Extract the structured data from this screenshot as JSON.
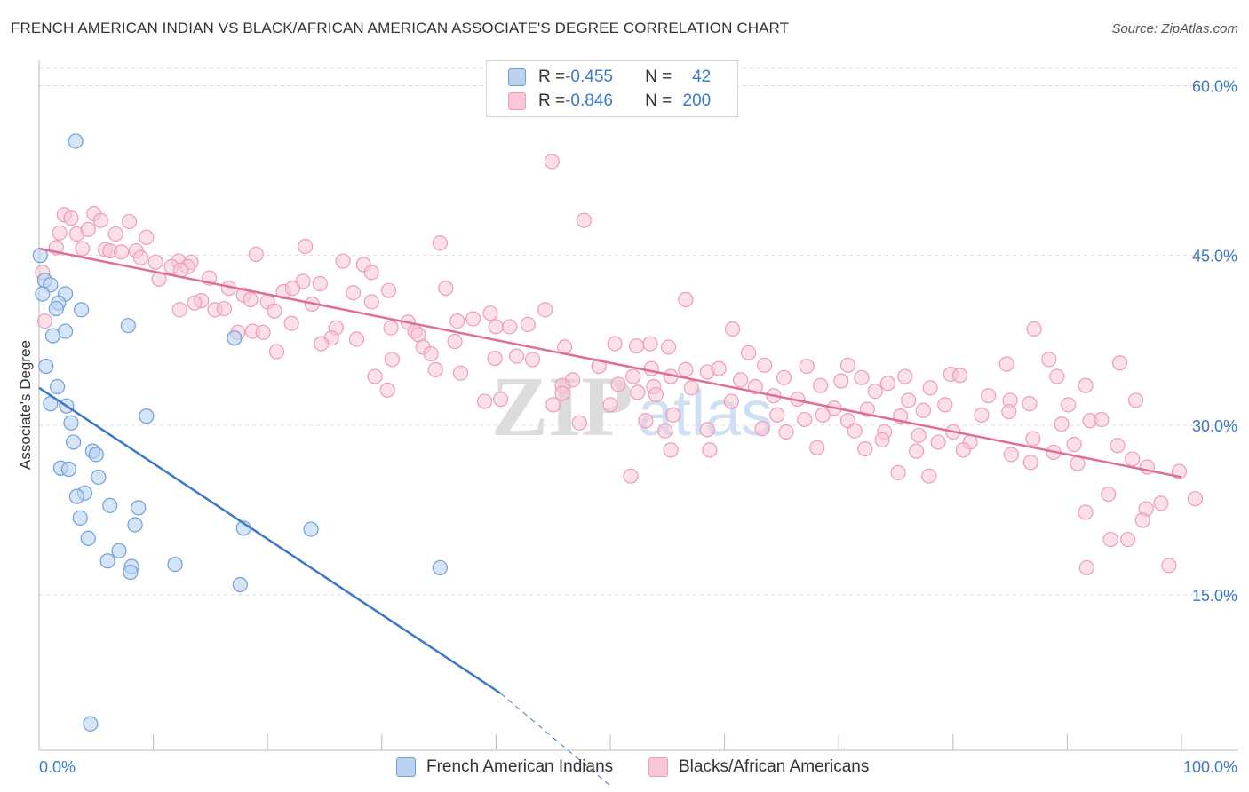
{
  "title": "FRENCH AMERICAN INDIAN VS BLACK/AFRICAN AMERICAN ASSOCIATE'S DEGREE CORRELATION CHART",
  "source": "Source: ZipAtlas.com",
  "watermark": {
    "zip": "ZIP",
    "atlas": "atlas"
  },
  "colors": {
    "blue": "#3a78c9",
    "blue_fill": "#b9d2f0",
    "blue_stroke": "#6fa0d8",
    "pink": "#e06c97",
    "pink_fill": "#f8c6d5",
    "pink_stroke": "#ee9cb8",
    "grid": "#dddddd",
    "axis_label": "#3a78c9"
  },
  "legend": {
    "rows": [
      {
        "r_label": "R = ",
        "r_value": "-0.455",
        "n_label": "N = ",
        "n_value": "42"
      },
      {
        "r_label": "R = ",
        "r_value": "-0.846",
        "n_label": "N = ",
        "n_value": "200"
      }
    ]
  },
  "chart_data": {
    "type": "scatter",
    "ylabel": "Associate's Degree",
    "xlim": [
      0,
      100
    ],
    "ylim": [
      0,
      60
    ],
    "x_tick_labels": {
      "min": "0.0%",
      "max": "100.0%"
    },
    "y_ticks": [
      {
        "value": 15,
        "label": "15.0%"
      },
      {
        "value": 30,
        "label": "30.0%"
      },
      {
        "value": 45,
        "label": "45.0%"
      },
      {
        "value": 60,
        "label": "60.0%"
      }
    ],
    "series": [
      {
        "name": "French American Indians",
        "color": "blue",
        "r": -0.455,
        "n": 42,
        "trend": {
          "x0": 0,
          "y0": 33.3,
          "x1": 40.4,
          "y1": 6.3,
          "dash_to_x": 50.0,
          "dash_to_y": 0.0
        },
        "points": [
          [
            3.2,
            55.1
          ],
          [
            0.1,
            45.0
          ],
          [
            0.5,
            42.8
          ],
          [
            1.0,
            42.4
          ],
          [
            0.3,
            41.6
          ],
          [
            2.3,
            41.6
          ],
          [
            1.7,
            40.8
          ],
          [
            1.5,
            40.3
          ],
          [
            3.7,
            40.2
          ],
          [
            7.8,
            38.8
          ],
          [
            2.3,
            38.3
          ],
          [
            1.2,
            37.9
          ],
          [
            17.1,
            37.7
          ],
          [
            0.6,
            35.2
          ],
          [
            1.6,
            33.4
          ],
          [
            1.0,
            31.9
          ],
          [
            2.4,
            31.7
          ],
          [
            9.4,
            30.8
          ],
          [
            2.8,
            30.2
          ],
          [
            3.0,
            28.5
          ],
          [
            4.7,
            27.7
          ],
          [
            5.0,
            27.4
          ],
          [
            1.9,
            26.2
          ],
          [
            2.6,
            26.1
          ],
          [
            5.2,
            25.4
          ],
          [
            4.0,
            24.0
          ],
          [
            3.3,
            23.7
          ],
          [
            6.2,
            22.9
          ],
          [
            8.7,
            22.7
          ],
          [
            3.6,
            21.8
          ],
          [
            8.4,
            21.2
          ],
          [
            17.9,
            20.9
          ],
          [
            23.8,
            20.8
          ],
          [
            4.3,
            20.0
          ],
          [
            7.0,
            18.9
          ],
          [
            6.0,
            18.0
          ],
          [
            11.9,
            17.7
          ],
          [
            8.1,
            17.5
          ],
          [
            35.1,
            17.4
          ],
          [
            8.0,
            17.0
          ],
          [
            17.6,
            15.9
          ],
          [
            4.5,
            3.6
          ]
        ]
      },
      {
        "name": "Blacks/African Americans",
        "color": "pink",
        "r": -0.846,
        "n": 200,
        "trend": {
          "x0": 0,
          "y0": 45.6,
          "x1": 100,
          "y1": 25.4
        },
        "points": [
          [
            44.9,
            53.3
          ],
          [
            47.7,
            48.1
          ],
          [
            2.2,
            48.6
          ],
          [
            4.8,
            48.7
          ],
          [
            2.8,
            48.3
          ],
          [
            5.4,
            48.1
          ],
          [
            7.9,
            48.0
          ],
          [
            1.8,
            47.0
          ],
          [
            3.3,
            46.9
          ],
          [
            4.3,
            47.3
          ],
          [
            6.7,
            46.9
          ],
          [
            9.4,
            46.6
          ],
          [
            35.1,
            46.1
          ],
          [
            23.3,
            45.8
          ],
          [
            1.5,
            45.7
          ],
          [
            3.8,
            45.6
          ],
          [
            5.8,
            45.5
          ],
          [
            6.2,
            45.4
          ],
          [
            8.5,
            45.4
          ],
          [
            7.2,
            45.3
          ],
          [
            19.0,
            45.1
          ],
          [
            8.9,
            44.8
          ],
          [
            12.2,
            44.5
          ],
          [
            10.2,
            44.4
          ],
          [
            13.3,
            44.4
          ],
          [
            26.6,
            44.5
          ],
          [
            28.4,
            44.2
          ],
          [
            11.6,
            44.0
          ],
          [
            13.0,
            44.0
          ],
          [
            12.4,
            43.7
          ],
          [
            29.1,
            43.5
          ],
          [
            10.5,
            42.9
          ],
          [
            14.9,
            43.0
          ],
          [
            23.1,
            42.7
          ],
          [
            0.3,
            43.5
          ],
          [
            16.6,
            42.1
          ],
          [
            21.4,
            41.8
          ],
          [
            22.2,
            42.1
          ],
          [
            24.6,
            42.5
          ],
          [
            35.6,
            42.1
          ],
          [
            30.6,
            41.9
          ],
          [
            27.5,
            41.7
          ],
          [
            17.9,
            41.5
          ],
          [
            18.5,
            41.1
          ],
          [
            14.2,
            41.0
          ],
          [
            13.6,
            40.8
          ],
          [
            20.0,
            40.9
          ],
          [
            23.9,
            40.7
          ],
          [
            29.1,
            40.9
          ],
          [
            56.6,
            41.1
          ],
          [
            12.3,
            40.2
          ],
          [
            15.4,
            40.2
          ],
          [
            16.2,
            40.3
          ],
          [
            20.6,
            40.1
          ],
          [
            44.3,
            40.2
          ],
          [
            39.5,
            39.9
          ],
          [
            0.5,
            39.2
          ],
          [
            22.1,
            39.0
          ],
          [
            32.3,
            39.1
          ],
          [
            36.6,
            39.2
          ],
          [
            38.0,
            39.4
          ],
          [
            40.0,
            38.7
          ],
          [
            41.2,
            38.7
          ],
          [
            42.8,
            38.9
          ],
          [
            26.0,
            38.6
          ],
          [
            30.8,
            38.6
          ],
          [
            32.9,
            38.3
          ],
          [
            60.7,
            38.5
          ],
          [
            87.1,
            38.5
          ],
          [
            17.4,
            38.2
          ],
          [
            18.7,
            38.3
          ],
          [
            19.6,
            38.2
          ],
          [
            33.2,
            38.0
          ],
          [
            25.6,
            37.7
          ],
          [
            27.8,
            37.6
          ],
          [
            24.7,
            37.2
          ],
          [
            36.4,
            37.4
          ],
          [
            50.4,
            37.2
          ],
          [
            52.3,
            37.0
          ],
          [
            53.5,
            37.2
          ],
          [
            46.0,
            36.9
          ],
          [
            55.1,
            36.9
          ],
          [
            20.8,
            36.5
          ],
          [
            33.6,
            36.9
          ],
          [
            34.3,
            36.3
          ],
          [
            41.8,
            36.1
          ],
          [
            39.9,
            35.9
          ],
          [
            62.1,
            36.4
          ],
          [
            30.9,
            35.8
          ],
          [
            43.2,
            35.8
          ],
          [
            67.2,
            35.2
          ],
          [
            70.8,
            35.3
          ],
          [
            84.7,
            35.4
          ],
          [
            88.4,
            35.8
          ],
          [
            94.6,
            35.5
          ],
          [
            49.0,
            35.2
          ],
          [
            34.7,
            34.9
          ],
          [
            53.6,
            35.0
          ],
          [
            56.6,
            34.9
          ],
          [
            58.5,
            34.7
          ],
          [
            59.5,
            35.0
          ],
          [
            63.5,
            35.3
          ],
          [
            36.9,
            34.6
          ],
          [
            29.4,
            34.3
          ],
          [
            46.7,
            34.0
          ],
          [
            52.0,
            34.3
          ],
          [
            55.3,
            34.3
          ],
          [
            61.4,
            34.0
          ],
          [
            65.2,
            34.2
          ],
          [
            72.0,
            34.2
          ],
          [
            75.8,
            34.3
          ],
          [
            79.8,
            34.5
          ],
          [
            89.1,
            34.3
          ],
          [
            45.8,
            33.5
          ],
          [
            50.7,
            33.6
          ],
          [
            53.8,
            33.4
          ],
          [
            57.1,
            33.3
          ],
          [
            62.7,
            33.4
          ],
          [
            68.4,
            33.5
          ],
          [
            70.2,
            33.9
          ],
          [
            74.3,
            33.7
          ],
          [
            80.6,
            34.4
          ],
          [
            91.6,
            33.5
          ],
          [
            85.0,
            32.2
          ],
          [
            30.5,
            33.1
          ],
          [
            45.8,
            32.8
          ],
          [
            52.4,
            32.9
          ],
          [
            54.0,
            32.7
          ],
          [
            64.3,
            32.6
          ],
          [
            73.2,
            33.0
          ],
          [
            76.1,
            32.2
          ],
          [
            78.0,
            33.3
          ],
          [
            83.1,
            32.6
          ],
          [
            86.7,
            31.9
          ],
          [
            90.1,
            31.8
          ],
          [
            96.0,
            32.2
          ],
          [
            40.4,
            32.3
          ],
          [
            45.0,
            31.8
          ],
          [
            39.0,
            32.1
          ],
          [
            50.0,
            31.8
          ],
          [
            60.6,
            32.1
          ],
          [
            66.4,
            32.3
          ],
          [
            69.6,
            31.5
          ],
          [
            72.5,
            31.4
          ],
          [
            77.4,
            31.3
          ],
          [
            79.3,
            31.8
          ],
          [
            84.9,
            31.2
          ],
          [
            55.5,
            30.9
          ],
          [
            64.6,
            30.9
          ],
          [
            67.0,
            30.5
          ],
          [
            68.6,
            30.9
          ],
          [
            75.4,
            30.8
          ],
          [
            82.5,
            30.9
          ],
          [
            92.0,
            30.4
          ],
          [
            93.0,
            30.5
          ],
          [
            47.3,
            30.2
          ],
          [
            53.1,
            30.4
          ],
          [
            58.5,
            29.6
          ],
          [
            63.3,
            29.7
          ],
          [
            70.8,
            30.4
          ],
          [
            74.0,
            29.4
          ],
          [
            77.0,
            29.1
          ],
          [
            80.0,
            29.4
          ],
          [
            87.0,
            28.8
          ],
          [
            89.5,
            30.1
          ],
          [
            54.8,
            29.5
          ],
          [
            65.4,
            29.4
          ],
          [
            71.4,
            29.5
          ],
          [
            73.8,
            28.7
          ],
          [
            78.7,
            28.5
          ],
          [
            81.5,
            28.5
          ],
          [
            90.6,
            28.3
          ],
          [
            94.4,
            28.2
          ],
          [
            55.3,
            27.8
          ],
          [
            58.7,
            27.8
          ],
          [
            68.1,
            28.0
          ],
          [
            72.3,
            27.9
          ],
          [
            76.8,
            27.7
          ],
          [
            80.9,
            27.8
          ],
          [
            85.1,
            27.4
          ],
          [
            86.8,
            26.7
          ],
          [
            88.8,
            27.6
          ],
          [
            95.7,
            27.0
          ],
          [
            97.0,
            26.3
          ],
          [
            99.8,
            25.9
          ],
          [
            51.8,
            25.5
          ],
          [
            77.9,
            25.5
          ],
          [
            75.2,
            25.8
          ],
          [
            90.9,
            26.6
          ],
          [
            93.6,
            23.9
          ],
          [
            98.2,
            23.1
          ],
          [
            101.2,
            23.5
          ],
          [
            96.9,
            22.6
          ],
          [
            96.6,
            21.6
          ],
          [
            91.6,
            22.3
          ],
          [
            95.3,
            19.9
          ],
          [
            93.8,
            19.9
          ],
          [
            91.7,
            17.4
          ],
          [
            98.9,
            17.6
          ]
        ]
      }
    ]
  }
}
